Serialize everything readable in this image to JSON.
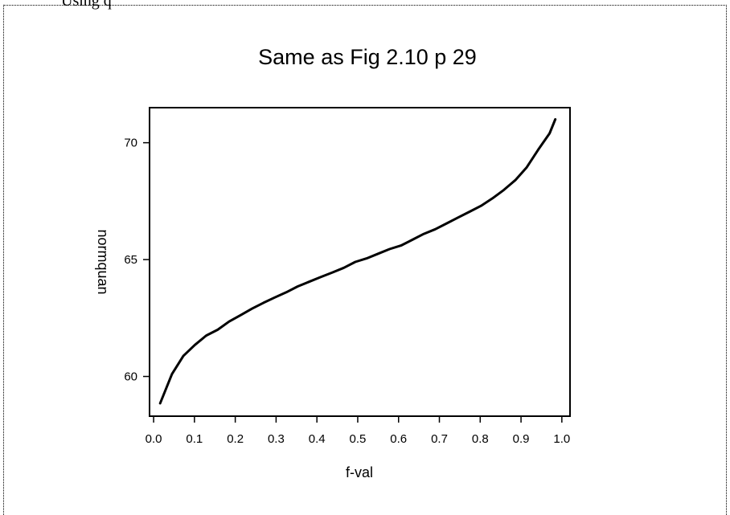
{
  "page": {
    "top_text": "Using q"
  },
  "chart_data": {
    "type": "line",
    "title": "Same as Fig 2.10 p 29",
    "xlabel": "f-val",
    "ylabel": "normquan",
    "xlim": [
      -0.01,
      1.02
    ],
    "ylim": [
      58.3,
      71.5
    ],
    "xticks": [
      0.0,
      0.1,
      0.2,
      0.3,
      0.4,
      0.5,
      0.6,
      0.7,
      0.8,
      0.9,
      1.0
    ],
    "xtick_labels": [
      "0.0",
      "0.1",
      "0.2",
      "0.3",
      "0.4",
      "0.5",
      "0.6",
      "0.7",
      "0.8",
      "0.9",
      "1.0"
    ],
    "yticks": [
      60,
      65,
      70
    ],
    "ytick_labels": [
      "60",
      "65",
      "70"
    ],
    "grid": false,
    "series": [
      {
        "color": "#000000",
        "x": [
          0.016,
          0.045,
          0.073,
          0.101,
          0.129,
          0.157,
          0.185,
          0.213,
          0.241,
          0.269,
          0.297,
          0.325,
          0.353,
          0.381,
          0.409,
          0.438,
          0.466,
          0.494,
          0.522,
          0.55,
          0.578,
          0.606,
          0.634,
          0.662,
          0.69,
          0.718,
          0.746,
          0.774,
          0.802,
          0.83,
          0.858,
          0.886,
          0.914,
          0.942,
          0.97,
          0.984
        ],
        "values": [
          58.85,
          60.1,
          60.88,
          61.35,
          61.75,
          62.0,
          62.35,
          62.62,
          62.9,
          63.15,
          63.38,
          63.6,
          63.85,
          64.05,
          64.25,
          64.45,
          64.65,
          64.9,
          65.05,
          65.25,
          65.45,
          65.6,
          65.85,
          66.1,
          66.3,
          66.55,
          66.8,
          67.05,
          67.3,
          67.62,
          67.98,
          68.4,
          68.95,
          69.7,
          70.4,
          71.0
        ]
      }
    ]
  }
}
